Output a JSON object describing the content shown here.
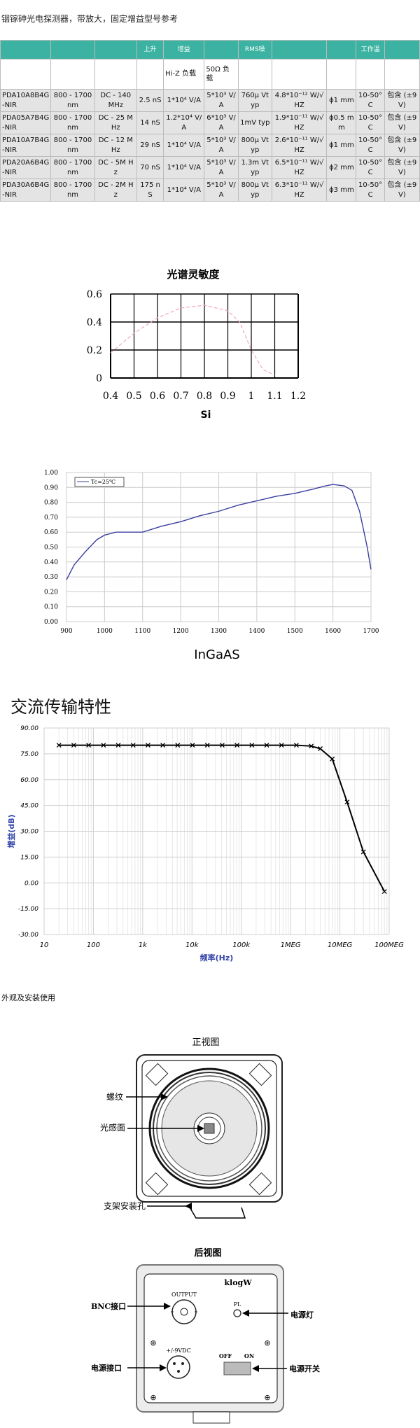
{
  "page_title": "铟镓砷光电探测器，带放大，固定增益型号参考",
  "table": {
    "header_top": [
      "",
      "",
      "",
      "上升",
      "增益",
      "",
      "RMS噪",
      "",
      "",
      "工作温",
      ""
    ],
    "header_sub": [
      "",
      "",
      "",
      "",
      "Hi-Z 负载",
      "50Ω 负载",
      "",
      "",
      "",
      "",
      ""
    ],
    "rows": [
      [
        "PDA10A8B4G-NIR",
        "800 - 1700 nm",
        "DC - 140 MHz",
        "2.5 nS",
        "1*10⁴ V/A",
        "5*10³ V/A",
        "760μ Vtyp",
        "4.8*10⁻¹² W/√HZ",
        "ϕ1 mm",
        "10-50°C",
        "包含 (±9 V)"
      ],
      [
        "PDA05A7B4G-NIR",
        "800 - 1700 nm",
        "DC - 25 MHz",
        "14 nS",
        "1.2*10⁴ V/A",
        "6*10³ V/A",
        "1mV typ",
        "1.9*10⁻¹¹ W/√HZ",
        "ϕ0.5 mm",
        "10-50°C",
        "包含 (±9 V)"
      ],
      [
        "PDA10A7B4G-NIR",
        "800 - 1700 nm",
        "DC - 12 MHz",
        "29 nS",
        "1*10⁴ V/A",
        "5*10³ V/A",
        "800μ Vtyp",
        "2.6*10⁻¹¹ W/√HZ",
        "ϕ1 mm",
        "10-50°C",
        "包含 (±9 V)"
      ],
      [
        "PDA20A6B4G-NIR",
        "800 - 1700 nm",
        "DC - 5M Hz",
        "70 nS",
        "1*10⁴ V/A",
        "5*10³ V/A",
        "1.3m Vtyp",
        "6.5*10⁻¹¹ W/√HZ",
        "ϕ2 mm",
        "10-50°C",
        "包含 (±9 V)"
      ],
      [
        "PDA30A6B4G-NIR",
        "800 - 1700 nm",
        "DC - 2M Hz",
        "175 nS",
        "1*10⁴ V/A",
        "5*10³ V/A",
        "800μ Vtyp",
        "6.3*10⁻¹¹ W/√HZ",
        "ϕ3 mm",
        "10-50°C",
        "包含 (±9 V)"
      ]
    ]
  },
  "chart_data": [
    {
      "type": "line",
      "title": "光谱灵敏度",
      "xlabel": "Si",
      "ylabel": "",
      "x_ticks": [
        "0.4",
        "0.5",
        "0.6",
        "0.7",
        "0.8",
        "0.9",
        "1",
        "1.1",
        "1.2"
      ],
      "y_ticks": [
        "0",
        "0.2",
        "0.4",
        "0.6"
      ],
      "xlim": [
        0.4,
        1.2
      ],
      "ylim": [
        0,
        0.6
      ],
      "grid": true,
      "series": [
        {
          "x": [
            0.4,
            0.5,
            0.6,
            0.7,
            0.8,
            0.9,
            0.95,
            1.0,
            1.05,
            1.1
          ],
          "y": [
            0.18,
            0.32,
            0.43,
            0.5,
            0.52,
            0.48,
            0.4,
            0.2,
            0.06,
            0.02
          ],
          "color": "#f0a8b8"
        }
      ]
    },
    {
      "type": "line",
      "title": "",
      "xlabel": "InGaAS",
      "legend": "Tc=25℃",
      "x_ticks": [
        "900",
        "1000",
        "1100",
        "1200",
        "1300",
        "1400",
        "1500",
        "1600",
        "1700"
      ],
      "y_ticks": [
        "0.00",
        "0.10",
        "0.20",
        "0.30",
        "0.40",
        "0.50",
        "0.60",
        "0.70",
        "0.80",
        "0.90",
        "1.00"
      ],
      "xlim": [
        900,
        1700
      ],
      "ylim": [
        0,
        1
      ],
      "grid": true,
      "series": [
        {
          "name": "Tc=25℃",
          "color": "#3b3fa0",
          "x": [
            900,
            920,
            950,
            980,
            1000,
            1030,
            1060,
            1100,
            1150,
            1200,
            1250,
            1300,
            1350,
            1400,
            1450,
            1500,
            1550,
            1580,
            1600,
            1630,
            1650,
            1670,
            1690,
            1700
          ],
          "y": [
            0.28,
            0.38,
            0.47,
            0.55,
            0.58,
            0.6,
            0.6,
            0.6,
            0.64,
            0.67,
            0.71,
            0.74,
            0.78,
            0.81,
            0.84,
            0.86,
            0.89,
            0.91,
            0.92,
            0.91,
            0.88,
            0.74,
            0.5,
            0.35
          ]
        }
      ]
    },
    {
      "type": "line",
      "title": "交流传输特性",
      "xlabel": "频率(Hz)",
      "ylabel": "增益(dB)",
      "x_scale": "log",
      "x_ticks": [
        "10",
        "100",
        "1k",
        "10k",
        "100k",
        "1MEG",
        "10MEG",
        "100MEG"
      ],
      "y_ticks": [
        "90.00",
        "75.00",
        "60.00",
        "45.00",
        "30.00",
        "15.00",
        "0.00",
        "-15.00",
        "-30.00"
      ],
      "xlim": [
        10,
        100000000
      ],
      "ylim": [
        -30,
        90
      ],
      "grid": true,
      "series": [
        {
          "color": "#000000",
          "x": [
            20,
            40,
            80,
            160,
            320,
            640,
            1280,
            2560,
            5120,
            10240,
            20480,
            40960,
            81920,
            163840,
            327680,
            655360,
            1310720,
            2621440,
            4000000,
            7000000,
            14000000,
            30000000,
            80000000
          ],
          "y": [
            80,
            80,
            80,
            80,
            80,
            80,
            80,
            80,
            80,
            80,
            80,
            80,
            80,
            80,
            80,
            80,
            80,
            79.5,
            78,
            72,
            47,
            18,
            -5
          ]
        }
      ]
    }
  ],
  "sections": {
    "appearance": "外观及安装使用",
    "front_view": {
      "title": "正视图",
      "labels": [
        "螺纹",
        "光感面",
        "支架安装孔"
      ]
    },
    "rear_view": {
      "title": "后视图",
      "model": "klogW",
      "output_label": "OUTPUT",
      "pl_label": "PL",
      "power_label": "+/-9VDC",
      "off_label": "OFF",
      "on_label": "ON",
      "labels": [
        "BNC接口",
        "电源灯",
        "电源接口",
        "电源开关"
      ]
    }
  }
}
